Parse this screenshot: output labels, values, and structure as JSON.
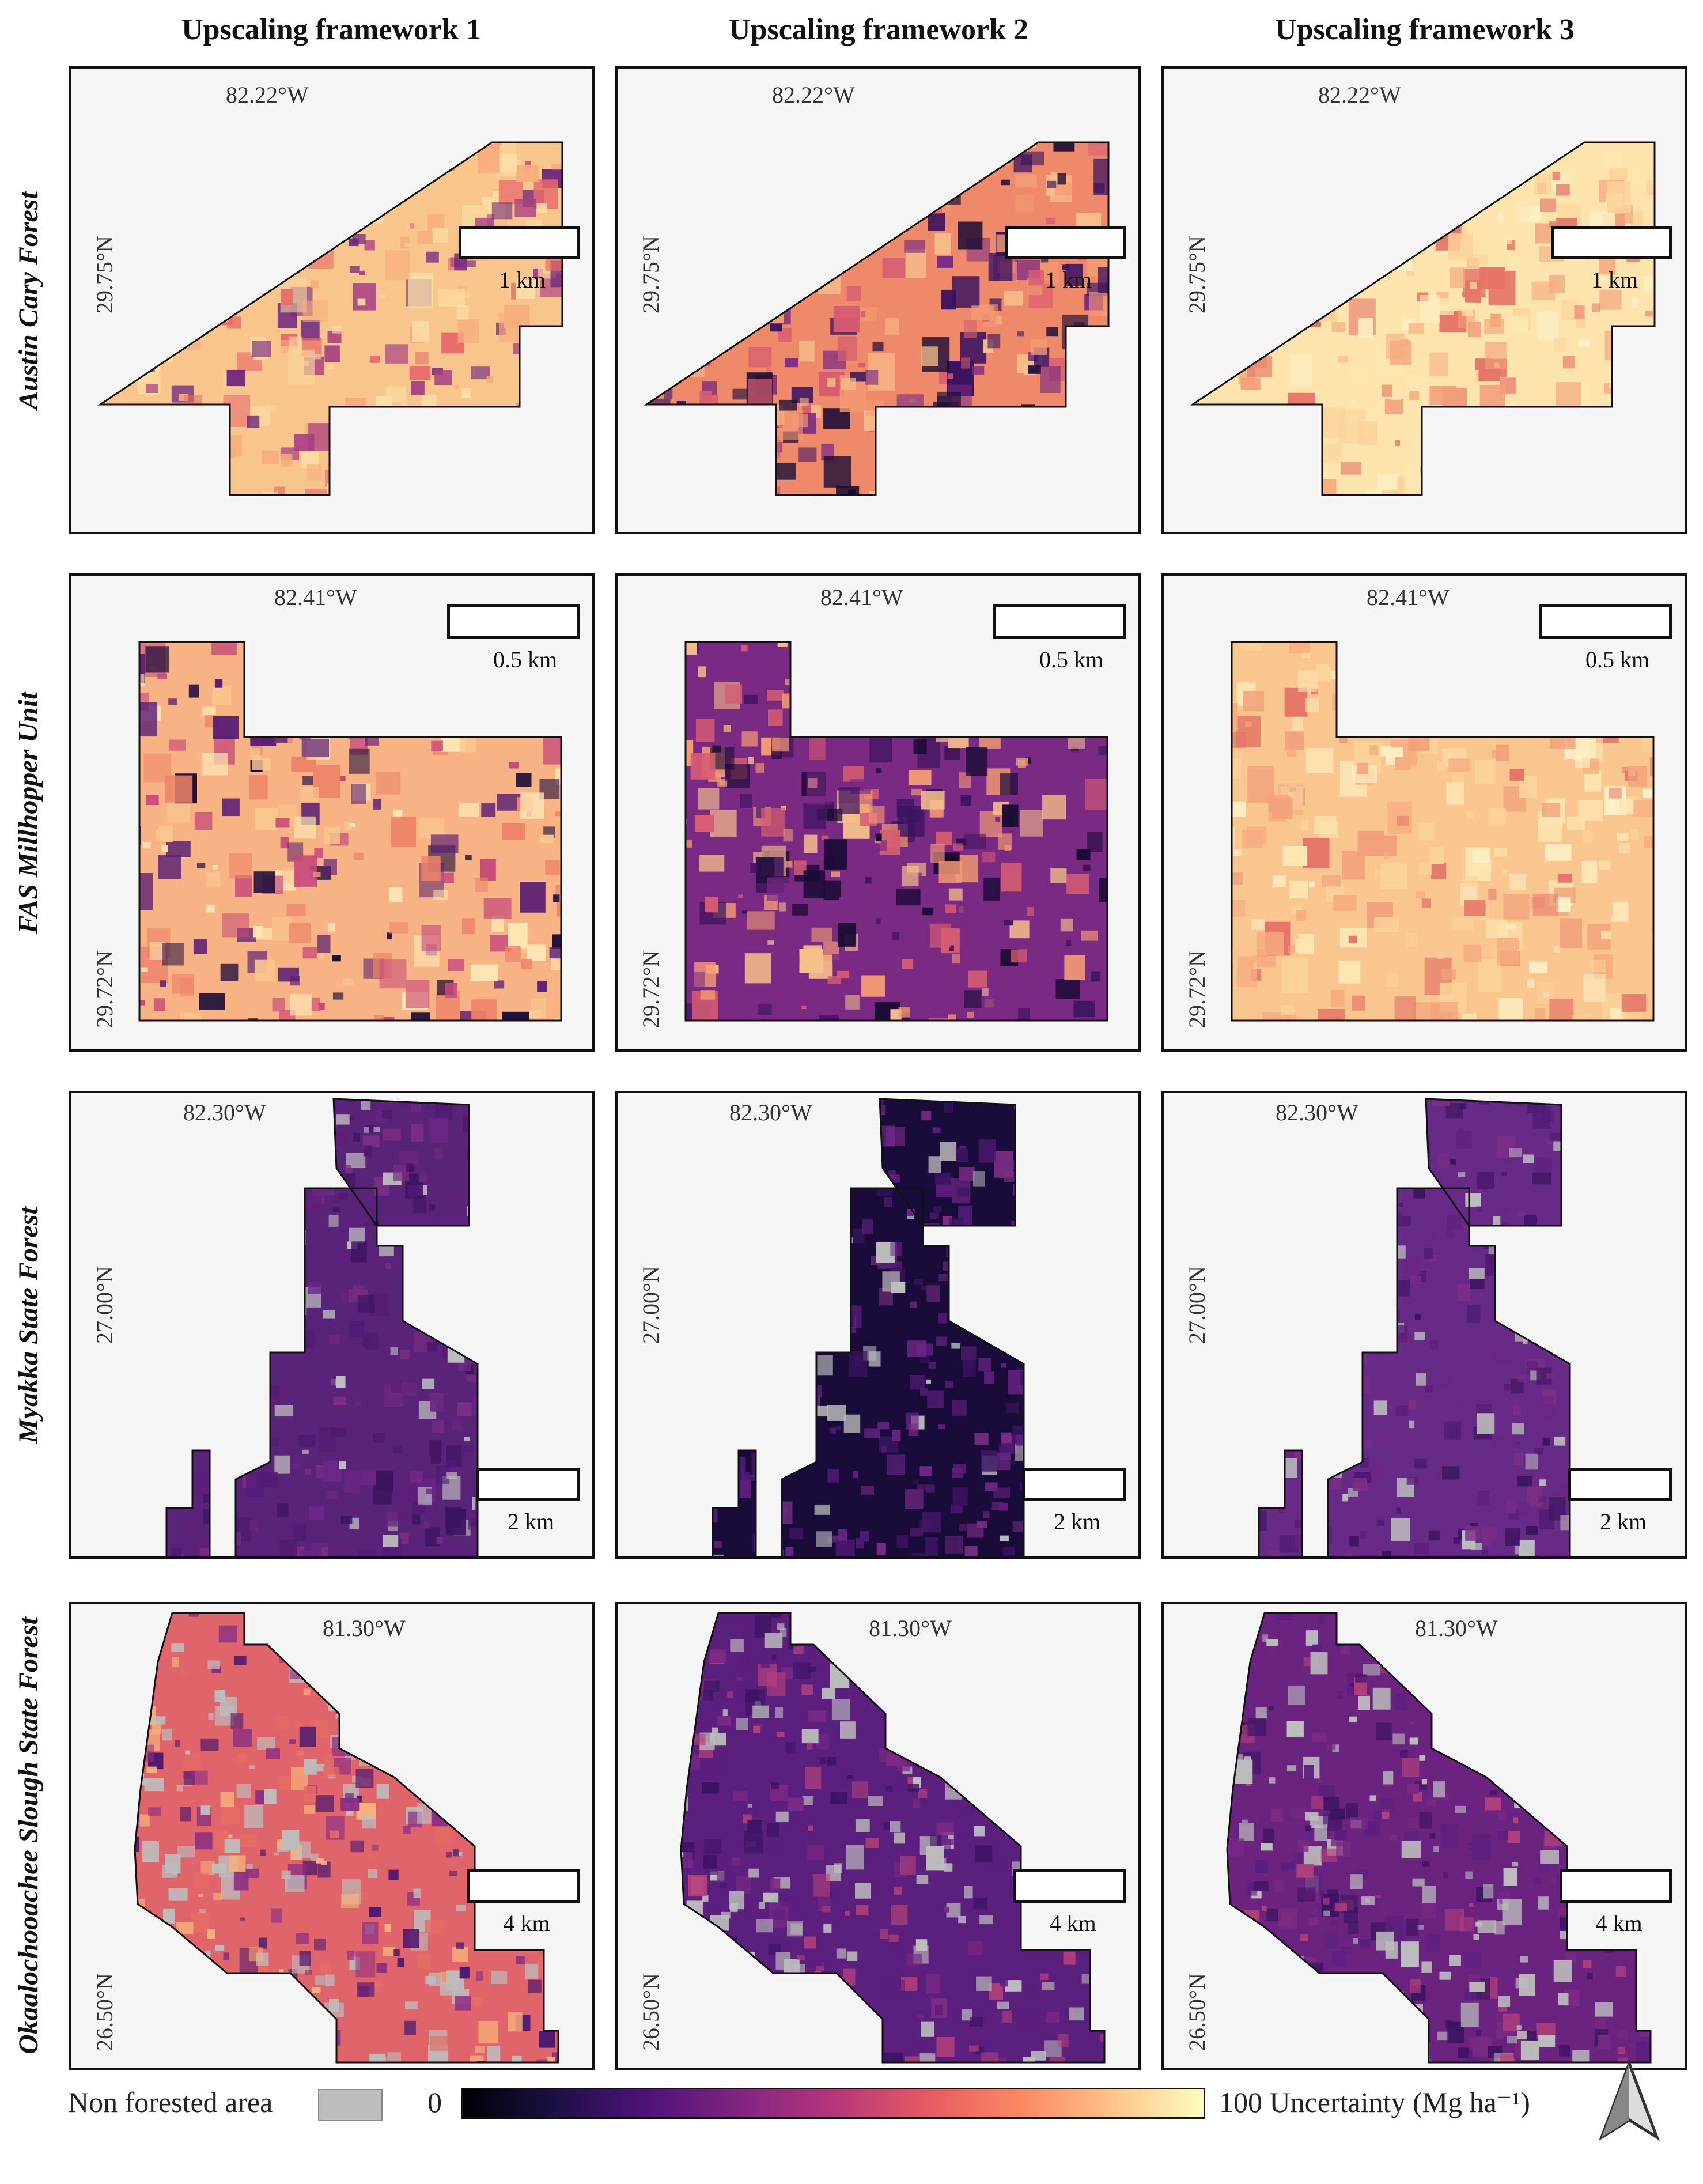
{
  "columns": [
    {
      "title": "Upscaling framework 1"
    },
    {
      "title": "Upscaling framework 2"
    },
    {
      "title": "Upscaling framework 3"
    }
  ],
  "rows": [
    {
      "name": "Austin Cary Forest",
      "lon": "82.22°W",
      "lat": "29.75°N",
      "scale": "1 km",
      "fw_colors": [
        "#f29b6f",
        "#b84a82",
        "#fbcf95"
      ],
      "fw_base": [
        "#f8c58c",
        "#ee8a6a",
        "#fde4ad"
      ]
    },
    {
      "name": "FAS Millhopper Unit",
      "lon": "82.41°W",
      "lat": "29.72°N",
      "scale": "0.5 km",
      "fw_colors": [
        "#e2716c",
        "#3a1660",
        "#e8786b"
      ],
      "fw_base": [
        "#f7b383",
        "#7b2a83",
        "#f9c690"
      ]
    },
    {
      "name": "Myakka State Forest",
      "lon": "82.30°W",
      "lat": "27.00°N",
      "scale": "2 km",
      "fw_colors": [
        "#5a237a",
        "#1a0c3a",
        "#672a86"
      ],
      "fw_base": [
        "#5a237a",
        "#1a0c3a",
        "#672a86"
      ]
    },
    {
      "name": "Okaalochooachee Slough State Forest",
      "lon": "81.30°W",
      "lat": "26.50°N",
      "scale": "4 km",
      "fw_colors": [
        "#e0656a",
        "#5b1f7e",
        "#6a2480"
      ],
      "fw_base": [
        "#e0656a",
        "#5b1f7e",
        "#6a2480"
      ]
    }
  ],
  "legend": {
    "non_forested_label": "Non forested area",
    "non_forested_color": "#bdbdbd",
    "min_label": "0",
    "max_label": "100 Uncertainty (Mg ha⁻¹)",
    "colormap": "magma"
  }
}
